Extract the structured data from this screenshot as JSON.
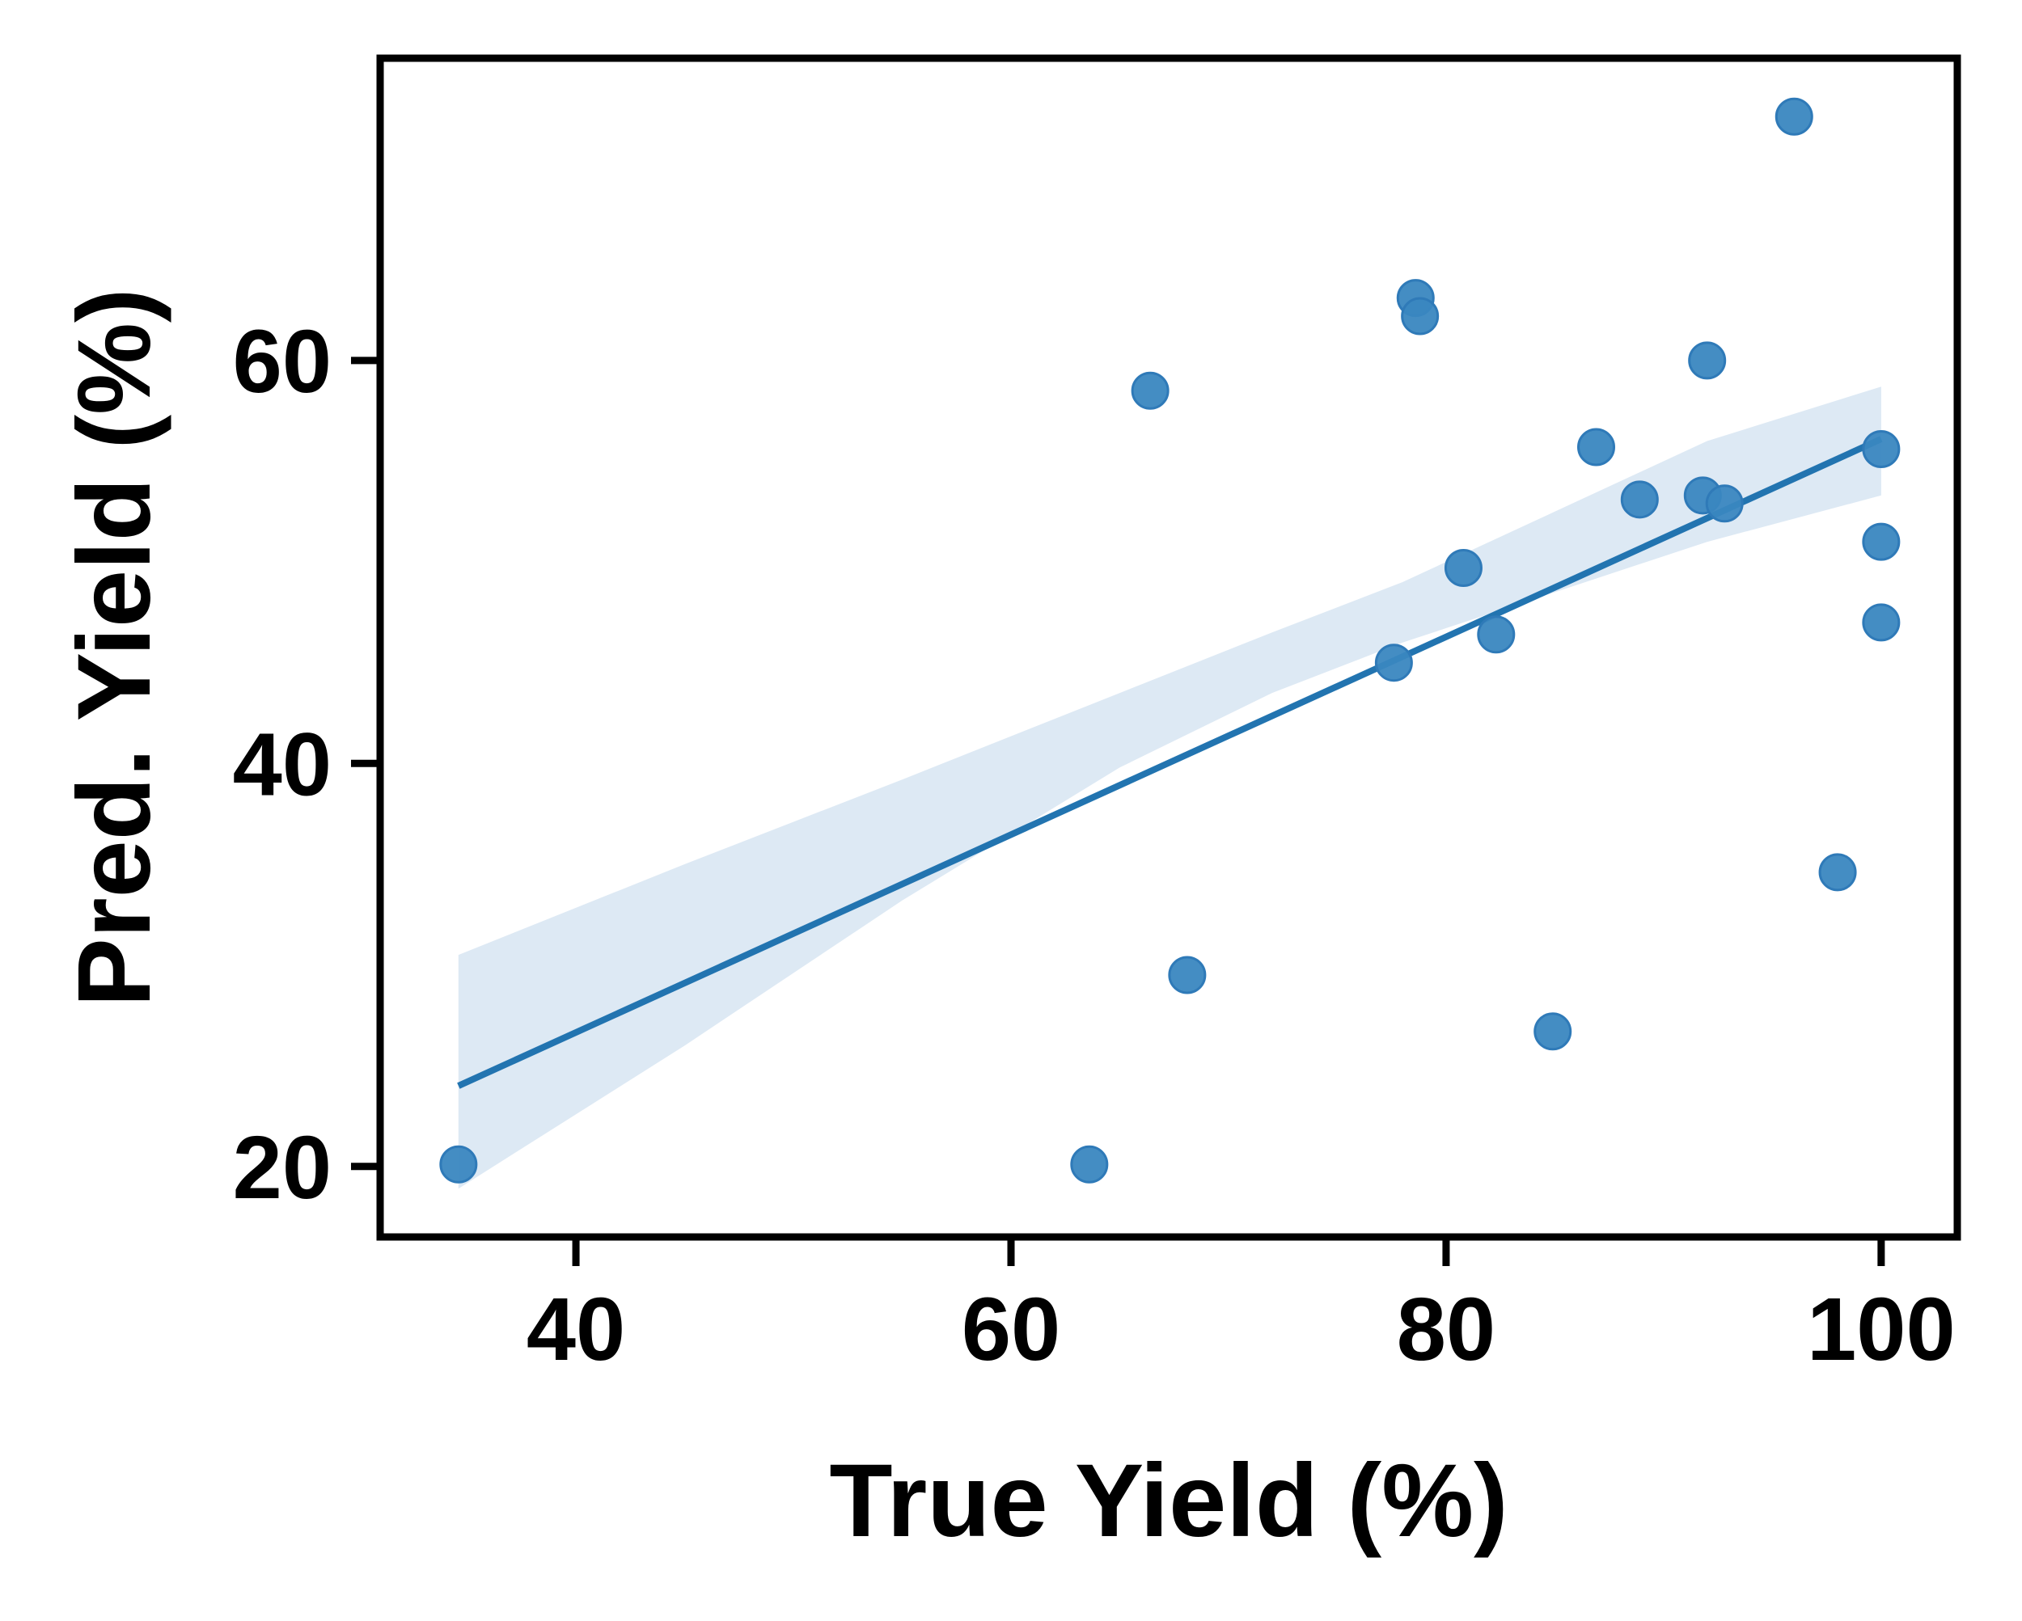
{
  "chart_data": {
    "type": "scatter",
    "title": "",
    "xlabel": "True Yield (%)",
    "ylabel": "Pred. Yield (%)",
    "xlim": [
      31,
      103.5
    ],
    "ylim": [
      16.5,
      75
    ],
    "x_ticks": [
      40,
      60,
      80,
      100
    ],
    "y_ticks": [
      20,
      40,
      60
    ],
    "x_tick_labels": [
      "40",
      "60",
      "80",
      "100"
    ],
    "y_tick_labels": [
      "20",
      "40",
      "60"
    ],
    "grid": false,
    "legend": "none",
    "colors": {
      "points": "#3a87c0",
      "points_edge": "#2f7ab8",
      "fit_line": "#2274b0",
      "confidence_band": "#dde9f4",
      "axes": "#000000"
    },
    "series": [
      {
        "values": [
          {
            "x": 34.6,
            "y": 20.1
          },
          {
            "x": 63.6,
            "y": 20.1
          },
          {
            "x": 66.4,
            "y": 58.5
          },
          {
            "x": 68.1,
            "y": 29.5
          },
          {
            "x": 77.6,
            "y": 45.0
          },
          {
            "x": 78.6,
            "y": 63.1
          },
          {
            "x": 78.8,
            "y": 62.2
          },
          {
            "x": 80.8,
            "y": 49.7
          },
          {
            "x": 82.3,
            "y": 46.4
          },
          {
            "x": 84.9,
            "y": 26.7
          },
          {
            "x": 86.9,
            "y": 55.7
          },
          {
            "x": 88.9,
            "y": 53.1
          },
          {
            "x": 91.8,
            "y": 53.3
          },
          {
            "x": 92.0,
            "y": 60.0
          },
          {
            "x": 92.8,
            "y": 52.9
          },
          {
            "x": 96.0,
            "y": 72.1
          },
          {
            "x": 98.0,
            "y": 34.6
          },
          {
            "x": 100.0,
            "y": 47.0
          },
          {
            "x": 100.0,
            "y": 51.0
          },
          {
            "x": 100.0,
            "y": 55.6
          }
        ]
      }
    ],
    "regression": {
      "x_start": 34.6,
      "x_end": 100.0,
      "y_start": 24.0,
      "y_end": 56.1
    },
    "confidence_band": [
      {
        "x": 34.6,
        "lower": 18.9,
        "upper": 30.5
      },
      {
        "x": 45.0,
        "lower": 26.0,
        "upper": 35.0
      },
      {
        "x": 55.0,
        "lower": 33.2,
        "upper": 39.2
      },
      {
        "x": 65.0,
        "lower": 39.8,
        "upper": 43.5
      },
      {
        "x": 72.0,
        "lower": 43.5,
        "upper": 46.5
      },
      {
        "x": 78.0,
        "lower": 46.0,
        "upper": 49.0
      },
      {
        "x": 85.0,
        "lower": 48.5,
        "upper": 52.5
      },
      {
        "x": 92.0,
        "lower": 51.0,
        "upper": 56.0
      },
      {
        "x": 100.0,
        "lower": 53.3,
        "upper": 58.7
      }
    ]
  }
}
